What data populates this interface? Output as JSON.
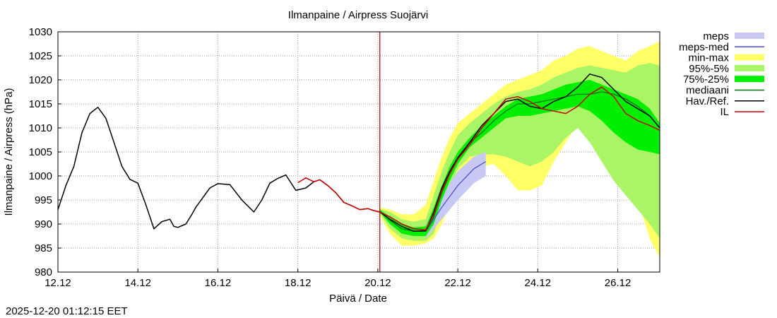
{
  "chart_data": {
    "type": "line",
    "title": "Ilmanpaine / Airpress Suojärvi",
    "xlabel": "Päivä / Date",
    "ylabel": "Ilmanpaine / Airpress (hPa)",
    "ylim": [
      980,
      1030
    ],
    "xlim": [
      0,
      15.05
    ],
    "grid": true,
    "y_ticks": [
      980,
      985,
      990,
      995,
      1000,
      1005,
      1010,
      1015,
      1020,
      1025,
      1030
    ],
    "x_ticks": [
      {
        "x": 0,
        "label": "12.12"
      },
      {
        "x": 2,
        "label": "14.12"
      },
      {
        "x": 4,
        "label": "16.12"
      },
      {
        "x": 6,
        "label": "18.12"
      },
      {
        "x": 8,
        "label": "20.12"
      },
      {
        "x": 10,
        "label": "22.12"
      },
      {
        "x": 12,
        "label": "24.12"
      },
      {
        "x": 14,
        "label": "26.12"
      }
    ],
    "x_unit": "days since 12.12 00:00",
    "forecast_start_x": 8.05,
    "legend_position": "right",
    "legend": [
      {
        "key": "meps",
        "label": "meps",
        "kind": "band",
        "color": "#c8c8f5"
      },
      {
        "key": "meps_med",
        "label": "meps-med",
        "kind": "line",
        "color": "#4a4acc"
      },
      {
        "key": "minmax",
        "label": "min-max",
        "kind": "band",
        "color": "#ffff66"
      },
      {
        "key": "p95_5",
        "label": "95%-5%",
        "kind": "band",
        "color": "#aaf566"
      },
      {
        "key": "p75_25",
        "label": "75%-25%",
        "kind": "band",
        "color": "#00ee00"
      },
      {
        "key": "median",
        "label": "mediaani",
        "kind": "line",
        "color": "#007700"
      },
      {
        "key": "obs",
        "label": "Hav./Ref.",
        "kind": "line",
        "color": "#000000"
      },
      {
        "key": "il",
        "label": "IL",
        "kind": "line",
        "color": "#cc0000"
      }
    ],
    "series": {
      "obs": {
        "x": [
          0,
          0.2,
          0.4,
          0.6,
          0.8,
          1.0,
          1.2,
          1.4,
          1.6,
          1.8,
          2.0,
          2.2,
          2.4,
          2.6,
          2.8,
          2.9,
          3.0,
          3.2,
          3.35,
          3.45,
          3.6,
          3.8,
          4.0,
          4.3,
          4.6,
          4.9,
          5.1,
          5.3,
          5.5,
          5.7,
          5.95,
          6.2,
          6.4,
          6.55,
          6.75,
          6.95,
          7.15,
          7.35,
          7.55,
          7.75,
          7.9,
          8.05
        ],
        "y": [
          993,
          998,
          1002,
          1009,
          1013,
          1014.3,
          1012,
          1007,
          1002,
          999.3,
          998.5,
          994,
          989,
          990.5,
          991,
          989.5,
          989.3,
          990,
          992,
          993.5,
          995.2,
          997.5,
          998.4,
          998.2,
          995,
          992.5,
          995,
          998.5,
          999.5,
          1000.2,
          997,
          997.5,
          998.8,
          999.2,
          998,
          996.5,
          994.5,
          993.8,
          993,
          993.2,
          992.8,
          992.5
        ]
      },
      "il_past": {
        "x": [
          6.0,
          6.2,
          6.4,
          6.55,
          6.75,
          6.95,
          7.15,
          7.35,
          7.55,
          7.75,
          7.9,
          8.05
        ],
        "y": [
          998.6,
          999.6,
          998.8,
          999.2,
          998.0,
          996.5,
          994.5,
          993.8,
          993.0,
          993.2,
          992.8,
          992.5
        ]
      },
      "x_fc": [
        8.05,
        8.3,
        8.6,
        8.9,
        9.2,
        9.4,
        9.6,
        9.8,
        10.0,
        10.3,
        10.6,
        10.9,
        11.2,
        11.5,
        11.8,
        12.1,
        12.4,
        12.7,
        13.0,
        13.3,
        13.6,
        13.9,
        14.2,
        14.5,
        14.8,
        15.05
      ],
      "minmax_hi": [
        993.5,
        993,
        992,
        992,
        994,
        999,
        1004,
        1008,
        1011,
        1013,
        1015,
        1017,
        1019,
        1020,
        1021,
        1022,
        1024,
        1025,
        1026.5,
        1027,
        1026,
        1025,
        1024,
        1026,
        1027,
        1028
      ],
      "minmax_lo": [
        991.8,
        988,
        985.5,
        985.5,
        986,
        987,
        990,
        994,
        999,
        1002,
        1002,
        1002.5,
        1000,
        997,
        997,
        998,
        1003,
        1007,
        1011,
        1008,
        1004,
        1000,
        999,
        995,
        987,
        983
      ],
      "p95_hi": [
        993.2,
        992.5,
        991,
        990.5,
        991,
        996,
        1001,
        1005,
        1008.5,
        1011,
        1013,
        1015,
        1016.5,
        1017.5,
        1018,
        1019,
        1020.5,
        1021.5,
        1022.5,
        1023,
        1022.5,
        1022,
        1021.5,
        1023,
        1023.5,
        1023
      ],
      "p95_lo": [
        992.2,
        989,
        987,
        986.5,
        986.5,
        988,
        993,
        997,
        1001.5,
        1004,
        1004.5,
        1004.5,
        1004,
        1003,
        1002,
        1003,
        1005,
        1008,
        1010,
        1007,
        1003,
        999,
        996,
        993,
        990,
        987
      ],
      "p75_hi": [
        993,
        991.5,
        990,
        989.3,
        989.5,
        993.5,
        998,
        1002,
        1005,
        1008,
        1010.5,
        1012.5,
        1014.5,
        1016,
        1016.5,
        1017,
        1018,
        1019,
        1019.5,
        1020,
        1019,
        1018,
        1017,
        1016,
        1014,
        1011
      ],
      "p75_lo": [
        992.5,
        990,
        988,
        987.5,
        987.5,
        990,
        995,
        999,
        1002.5,
        1006,
        1008,
        1010,
        1012,
        1012.5,
        1012.5,
        1013,
        1013.5,
        1014,
        1014.5,
        1013.5,
        1011.5,
        1009,
        1007,
        1005.5,
        1005,
        1004.5
      ],
      "median": [
        992.7,
        990.8,
        989,
        988.5,
        988.5,
        991.5,
        996.5,
        1000.5,
        1003.5,
        1007,
        1009,
        1011.5,
        1013.5,
        1015,
        1015,
        1015.5,
        1016,
        1016.5,
        1017,
        1017,
        1017.5,
        1017,
        1016,
        1014.5,
        1012.5,
        1010
      ],
      "meps_x": [
        9.2,
        9.6,
        10.0,
        10.4,
        10.7
      ],
      "meps_hi": [
        990,
        996,
        1001,
        1004,
        1005
      ],
      "meps_lo": [
        987,
        991,
        995,
        998.5,
        1000
      ],
      "meps_med": [
        988.5,
        993.5,
        998,
        1001.5,
        1003
      ],
      "obs_fc_x": [
        8.05,
        8.3,
        8.6,
        8.9,
        9.2,
        9.4,
        9.6,
        9.8,
        10.0,
        10.3,
        10.6,
        10.9,
        11.2,
        11.5,
        11.8,
        12.1,
        12.4,
        12.7,
        13.0,
        13.3,
        13.6,
        13.9,
        14.2,
        14.5,
        14.8,
        15.05
      ],
      "obs_fc": [
        992.5,
        991,
        989.5,
        988.5,
        988.6,
        992.5,
        997.5,
        1001,
        1003.8,
        1007,
        1010.5,
        1013,
        1015.5,
        1016,
        1014.5,
        1014,
        1015.5,
        1016.5,
        1018.5,
        1021.2,
        1020.5,
        1018,
        1015.5,
        1014,
        1012.5,
        1010
      ],
      "il_fc": [
        992.5,
        991.5,
        990,
        989,
        988.8,
        992,
        997,
        1000.5,
        1003.5,
        1006.5,
        1010,
        1013,
        1016,
        1016.5,
        1015.5,
        1014,
        1013.5,
        1013,
        1014.5,
        1017,
        1018.5,
        1016.5,
        1013,
        1011.5,
        1010.5,
        1009.5
      ]
    }
  },
  "timestamp": "2025-12-20 01:12:15 EET"
}
